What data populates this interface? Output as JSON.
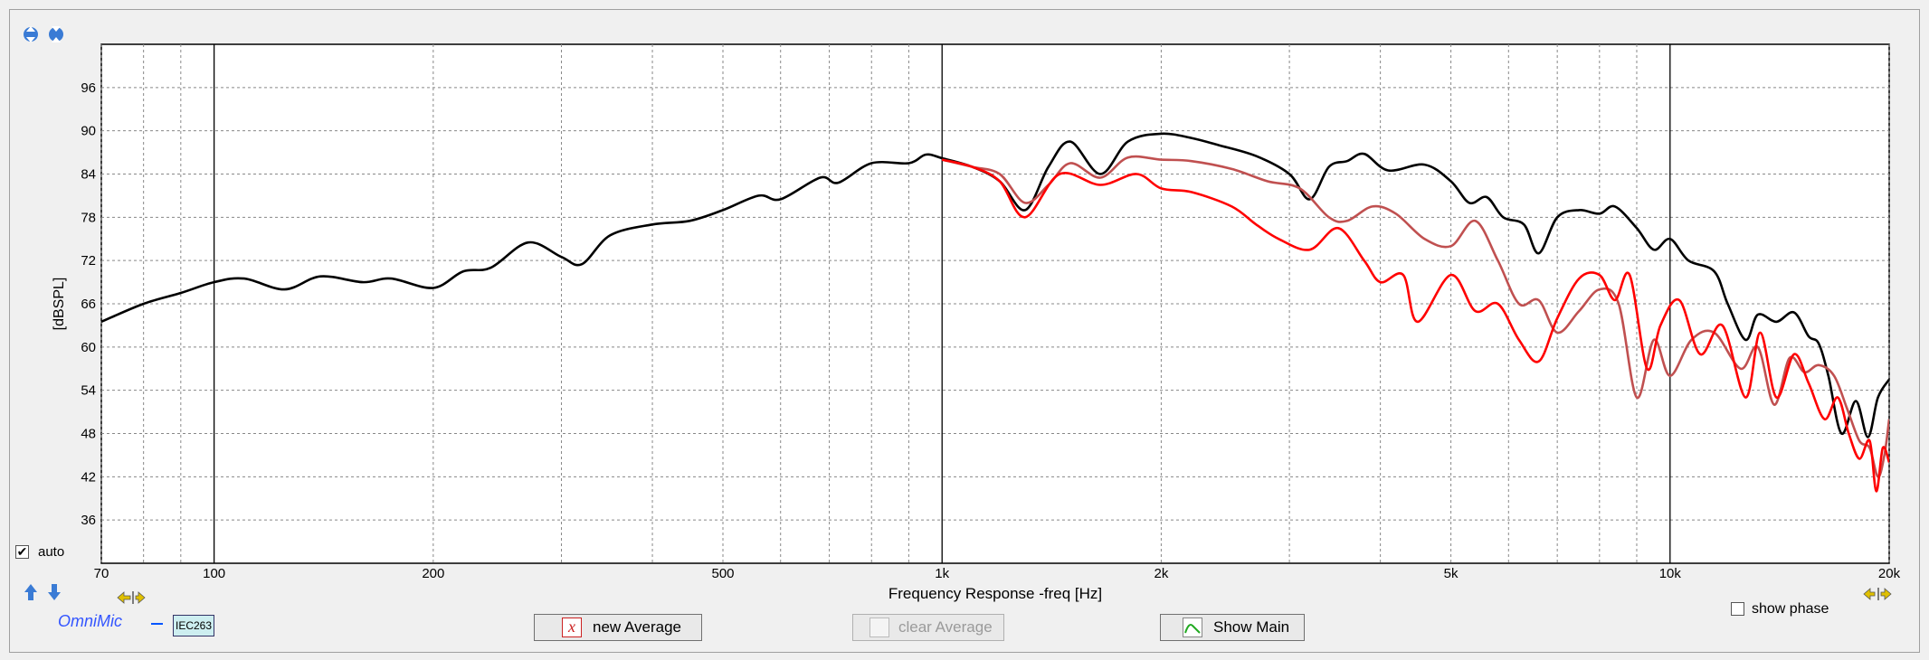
{
  "chart_data": {
    "type": "line",
    "title": "",
    "xlabel": "Frequency Response -freq [Hz]",
    "ylabel": "[dBSPL]",
    "xscale": "log",
    "xlim": [
      70,
      20000
    ],
    "ylim": [
      30,
      102
    ],
    "x_ticks": [
      70,
      100,
      200,
      500,
      1000,
      2000,
      5000,
      10000,
      20000
    ],
    "x_tick_labels": [
      "70",
      "100",
      "200",
      "500",
      "1k",
      "2k",
      "5k",
      "10k",
      "20k"
    ],
    "y_ticks": [
      36,
      42,
      48,
      54,
      60,
      66,
      72,
      78,
      84,
      90,
      96
    ],
    "y_tick_labels": [
      "36",
      "42",
      "48",
      "54",
      "60",
      "66",
      "72",
      "78",
      "84",
      "90",
      "96"
    ],
    "grid": true,
    "series": [
      {
        "color": "#000000",
        "points": [
          [
            70,
            63.5
          ],
          [
            80,
            66
          ],
          [
            90,
            67.5
          ],
          [
            100,
            69
          ],
          [
            110,
            69.5
          ],
          [
            125,
            68
          ],
          [
            140,
            69.8
          ],
          [
            160,
            69
          ],
          [
            175,
            69.5
          ],
          [
            200,
            68.2
          ],
          [
            220,
            70.5
          ],
          [
            240,
            71
          ],
          [
            270,
            74.5
          ],
          [
            300,
            72.5
          ],
          [
            320,
            71.5
          ],
          [
            350,
            75.5
          ],
          [
            400,
            77
          ],
          [
            450,
            77.5
          ],
          [
            500,
            79
          ],
          [
            560,
            81
          ],
          [
            600,
            80.5
          ],
          [
            680,
            83.5
          ],
          [
            720,
            82.8
          ],
          [
            800,
            85.5
          ],
          [
            900,
            85.5
          ],
          [
            950,
            86.7
          ],
          [
            1000,
            86.2
          ],
          [
            1100,
            85
          ],
          [
            1200,
            83
          ],
          [
            1300,
            79
          ],
          [
            1400,
            85
          ],
          [
            1500,
            88.5
          ],
          [
            1650,
            84
          ],
          [
            1800,
            88.5
          ],
          [
            2000,
            89.6
          ],
          [
            2200,
            89
          ],
          [
            2400,
            88
          ],
          [
            2700,
            86.5
          ],
          [
            3000,
            84
          ],
          [
            3200,
            80.5
          ],
          [
            3400,
            85
          ],
          [
            3600,
            85.8
          ],
          [
            3800,
            86.8
          ],
          [
            4100,
            84.5
          ],
          [
            4600,
            85.3
          ],
          [
            5000,
            83
          ],
          [
            5300,
            80
          ],
          [
            5600,
            80.8
          ],
          [
            5900,
            78
          ],
          [
            6300,
            77
          ],
          [
            6600,
            73
          ],
          [
            7000,
            78
          ],
          [
            7500,
            79
          ],
          [
            8000,
            78.5
          ],
          [
            8400,
            79.5
          ],
          [
            9000,
            76.5
          ],
          [
            9500,
            73.5
          ],
          [
            10000,
            75
          ],
          [
            10600,
            72
          ],
          [
            11500,
            70.5
          ],
          [
            12000,
            66
          ],
          [
            12700,
            61
          ],
          [
            13200,
            64.5
          ],
          [
            14000,
            63.5
          ],
          [
            14800,
            64.8
          ],
          [
            15500,
            61.5
          ],
          [
            16000,
            60.5
          ],
          [
            16500,
            56
          ],
          [
            17200,
            48
          ],
          [
            18000,
            52.5
          ],
          [
            18700,
            47.5
          ],
          [
            19300,
            53
          ],
          [
            20000,
            55.5
          ]
        ]
      },
      {
        "color": "#c05050",
        "points": [
          [
            1000,
            86
          ],
          [
            1100,
            85
          ],
          [
            1200,
            84
          ],
          [
            1300,
            80
          ],
          [
            1400,
            82.5
          ],
          [
            1500,
            85.5
          ],
          [
            1650,
            83.5
          ],
          [
            1800,
            86.3
          ],
          [
            2000,
            86
          ],
          [
            2200,
            85.8
          ],
          [
            2500,
            84.7
          ],
          [
            2800,
            83
          ],
          [
            3100,
            82
          ],
          [
            3400,
            78
          ],
          [
            3600,
            77.5
          ],
          [
            3900,
            79.5
          ],
          [
            4200,
            78.5
          ],
          [
            4600,
            75
          ],
          [
            5000,
            74
          ],
          [
            5400,
            77.5
          ],
          [
            5800,
            72
          ],
          [
            6200,
            66
          ],
          [
            6600,
            66.5
          ],
          [
            7000,
            62
          ],
          [
            7500,
            65
          ],
          [
            8000,
            68
          ],
          [
            8500,
            66
          ],
          [
            9000,
            53
          ],
          [
            9500,
            61
          ],
          [
            10000,
            56
          ],
          [
            10700,
            61
          ],
          [
            11500,
            62
          ],
          [
            12500,
            57
          ],
          [
            13200,
            60
          ],
          [
            13900,
            52
          ],
          [
            14600,
            58.5
          ],
          [
            15300,
            56.5
          ],
          [
            16000,
            57.5
          ],
          [
            16800,
            56
          ],
          [
            17500,
            51.5
          ],
          [
            18200,
            47
          ],
          [
            18800,
            46
          ],
          [
            19300,
            42
          ],
          [
            19700,
            45
          ],
          [
            20000,
            50
          ]
        ]
      },
      {
        "color": "#ff0000",
        "points": [
          [
            1000,
            86
          ],
          [
            1100,
            85
          ],
          [
            1200,
            83
          ],
          [
            1300,
            78
          ],
          [
            1450,
            84
          ],
          [
            1650,
            82.5
          ],
          [
            1850,
            84
          ],
          [
            2000,
            82
          ],
          [
            2200,
            81.5
          ],
          [
            2500,
            79.5
          ],
          [
            2700,
            77
          ],
          [
            2900,
            75
          ],
          [
            3200,
            73.5
          ],
          [
            3500,
            76.5
          ],
          [
            3800,
            72
          ],
          [
            4000,
            69
          ],
          [
            4300,
            70
          ],
          [
            4500,
            63.5
          ],
          [
            5000,
            70
          ],
          [
            5400,
            65
          ],
          [
            5800,
            66
          ],
          [
            6200,
            61
          ],
          [
            6600,
            58
          ],
          [
            7000,
            64
          ],
          [
            7500,
            69.5
          ],
          [
            8000,
            70
          ],
          [
            8400,
            66.5
          ],
          [
            8800,
            70
          ],
          [
            9300,
            57
          ],
          [
            9700,
            63
          ],
          [
            10300,
            66.5
          ],
          [
            11000,
            59
          ],
          [
            11800,
            63
          ],
          [
            12700,
            53
          ],
          [
            13300,
            62
          ],
          [
            14000,
            53
          ],
          [
            14800,
            59
          ],
          [
            15500,
            55
          ],
          [
            16300,
            50
          ],
          [
            17000,
            53
          ],
          [
            17600,
            48
          ],
          [
            18200,
            44.5
          ],
          [
            18800,
            47
          ],
          [
            19200,
            40
          ],
          [
            19600,
            46
          ],
          [
            20000,
            44
          ]
        ]
      }
    ]
  },
  "controls": {
    "auto_label": "auto",
    "auto_checked": true,
    "show_phase_label": "show phase",
    "show_phase_checked": false,
    "omnimic_label": "OmniMic",
    "iec_label": "IEC263",
    "new_average_label": "new Average",
    "clear_average_label": "clear Average",
    "show_main_label": "Show Main"
  },
  "icons": {
    "top_left_1": "zoom-in-vertical-icon",
    "top_left_2": "zoom-out-vertical-icon",
    "bottom_left_1": "scroll-up-icon",
    "bottom_left_2": "scroll-down-icon",
    "x_left": "scroll-left-icon",
    "x_right": "scroll-right-icon"
  }
}
